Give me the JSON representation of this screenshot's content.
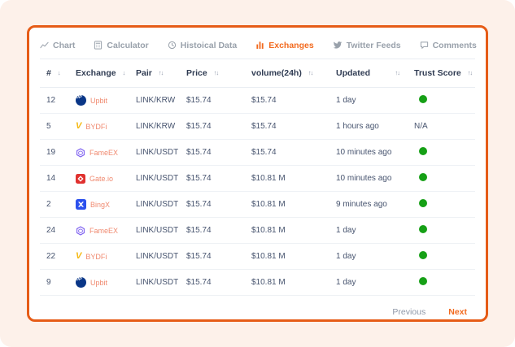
{
  "tabs": [
    {
      "label": "Chart",
      "icon": "line-chart-icon",
      "active": false
    },
    {
      "label": "Calculator",
      "icon": "calculator-icon",
      "active": false
    },
    {
      "label": "Histoical Data",
      "icon": "history-clock-icon",
      "active": false
    },
    {
      "label": "Exchanges",
      "icon": "bar-chart-icon",
      "active": true
    },
    {
      "label": "Twitter Feeds",
      "icon": "twitter-bird-icon",
      "active": false
    },
    {
      "label": "Comments",
      "icon": "comment-bubble-icon",
      "active": false
    }
  ],
  "table": {
    "columns": [
      {
        "label": "#",
        "sort_icon": "arrow-down"
      },
      {
        "label": "Exchange",
        "sort_icon": "arrow-down"
      },
      {
        "label": "Pair",
        "sort_icon": "arrows-up-down"
      },
      {
        "label": "Price",
        "sort_icon": "arrows-up-down"
      },
      {
        "label": "volume(24h)",
        "sort_icon": "arrows-up-down"
      },
      {
        "label": "Updated",
        "sort_icon": "arrows-up-down"
      },
      {
        "label": "Trust Score",
        "sort_icon": "arrows-up-down"
      }
    ],
    "rows": [
      {
        "rank": "12",
        "exchange": "Upbit",
        "logo": "upbit-logo",
        "pair": "LINK/KRW",
        "price": "$15.74",
        "volume_24h": "$15.74",
        "updated": "1 day",
        "trust_score": "green"
      },
      {
        "rank": "5",
        "exchange": "BYDFi",
        "logo": "bydfi-logo",
        "pair": "LINK/KRW",
        "price": "$15.74",
        "volume_24h": "$15.74",
        "updated": "1 hours ago",
        "trust_score": "N/A"
      },
      {
        "rank": "19",
        "exchange": "FameEX",
        "logo": "fameex-logo",
        "pair": "LINK/USDT",
        "price": "$15.74",
        "volume_24h": "$15.74",
        "updated": "10 minutes ago",
        "trust_score": "green"
      },
      {
        "rank": "14",
        "exchange": "Gate.io",
        "logo": "gateio-logo",
        "pair": "LINK/USDT",
        "price": "$15.74",
        "volume_24h": "$10.81 M",
        "updated": "10 minutes ago",
        "trust_score": "green"
      },
      {
        "rank": "2",
        "exchange": "BingX",
        "logo": "bingx-logo",
        "pair": "LINK/USDT",
        "price": "$15.74",
        "volume_24h": "$10.81 M",
        "updated": "9 minutes ago",
        "trust_score": "green"
      },
      {
        "rank": "24",
        "exchange": "FameEX",
        "logo": "fameex-logo",
        "pair": "LINK/USDT",
        "price": "$15.74",
        "volume_24h": "$10.81 M",
        "updated": "1 day",
        "trust_score": "green"
      },
      {
        "rank": "22",
        "exchange": "BYDFi",
        "logo": "bydfi-logo",
        "pair": "LINK/USDT",
        "price": "$15.74",
        "volume_24h": "$10.81 M",
        "updated": "1 day",
        "trust_score": "green"
      },
      {
        "rank": "9",
        "exchange": "Upbit",
        "logo": "upbit-logo",
        "pair": "LINK/USDT",
        "price": "$15.74",
        "volume_24h": "$10.81 M",
        "updated": "1 day",
        "trust_score": "green"
      }
    ]
  },
  "pagination": {
    "previous_label": "Previous",
    "next_label": "Next"
  },
  "colors": {
    "page_background": "#fdf1ea",
    "card_border": "#e65c17",
    "accent_orange": "#f26a1f",
    "exchange_name": "#f08a70",
    "trust_green": "#16a016",
    "header_text": "#2f3b52",
    "cell_text": "#46536e",
    "inactive_tab": "#99a1ab"
  }
}
